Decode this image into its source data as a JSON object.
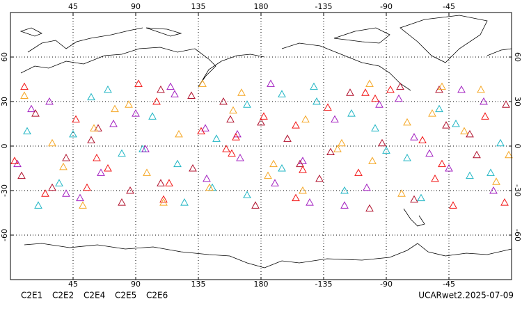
{
  "chart_data": {
    "type": "scatter",
    "xlim": [
      0,
      360
    ],
    "ylim": [
      -90,
      90
    ],
    "xticks": [
      45,
      90,
      135,
      180,
      {
        "value": 225,
        "label": "-135"
      },
      {
        "value": 270,
        "label": "-90"
      },
      {
        "value": 315,
        "label": "-45"
      }
    ],
    "yticks": [
      -60,
      -30,
      0,
      30,
      60
    ],
    "grid": true,
    "note": "UCARwet2.2025-07-09",
    "series": [
      {
        "name": "C2E1",
        "color": "#1fb5c4",
        "x": [
          12,
          35,
          58,
          80,
          102,
          125,
          148,
          170,
          195,
          218,
          240,
          262,
          285,
          308,
          330,
          352,
          20,
          70,
          120,
          170,
          220,
          270,
          320,
          45,
          145,
          245,
          345,
          95,
          195,
          295
        ],
        "y": [
          10,
          -25,
          33,
          -5,
          20,
          -38,
          5,
          28,
          -15,
          40,
          -30,
          12,
          -8,
          25,
          -20,
          2,
          -40,
          38,
          -12,
          -33,
          30,
          -3,
          15,
          8,
          -28,
          22,
          -18,
          -2,
          35,
          -35
        ]
      },
      {
        "name": "C2E2",
        "color": "#a21fc0",
        "x": [
          5,
          28,
          50,
          74,
          97,
          118,
          141,
          163,
          187,
          210,
          233,
          256,
          279,
          301,
          324,
          347,
          15,
          65,
          115,
          165,
          215,
          265,
          315,
          40,
          140,
          240,
          340,
          90,
          190,
          290
        ],
        "y": [
          -12,
          30,
          -35,
          15,
          -2,
          35,
          -22,
          8,
          42,
          -10,
          18,
          -28,
          32,
          -5,
          38,
          -30,
          25,
          -18,
          40,
          -8,
          -38,
          28,
          -15,
          -32,
          12,
          -40,
          30,
          22,
          -25,
          6
        ]
      },
      {
        "name": "C2E4",
        "color": "#b0102c",
        "x": [
          18,
          40,
          63,
          86,
          108,
          131,
          153,
          176,
          199,
          222,
          244,
          267,
          290,
          313,
          335,
          356,
          8,
          58,
          108,
          158,
          208,
          258,
          308,
          30,
          130,
          230,
          330,
          80,
          180,
          280
        ],
        "y": [
          22,
          -8,
          12,
          -30,
          38,
          -15,
          30,
          -40,
          5,
          -22,
          36,
          2,
          -36,
          14,
          -6,
          28,
          -20,
          4,
          -25,
          18,
          -12,
          -42,
          38,
          -28,
          34,
          -4,
          8,
          -38,
          16,
          40
        ]
      },
      {
        "name": "C2E5",
        "color": "#f21414",
        "x": [
          25,
          47,
          70,
          92,
          114,
          137,
          159,
          182,
          205,
          228,
          250,
          273,
          296,
          318,
          341,
          3,
          55,
          105,
          155,
          205,
          255,
          305,
          355,
          62,
          162,
          262,
          10,
          110,
          210,
          310
        ],
        "y": [
          -32,
          18,
          -15,
          42,
          -25,
          10,
          -5,
          20,
          -35,
          26,
          -18,
          38,
          4,
          -40,
          20,
          -10,
          -28,
          30,
          -2,
          14,
          36,
          -22,
          -38,
          -8,
          6,
          32,
          40,
          -36,
          -16,
          -12
        ]
      },
      {
        "name": "C2E6",
        "color": "#f5a623",
        "x": [
          30,
          52,
          75,
          98,
          121,
          143,
          166,
          189,
          212,
          235,
          258,
          281,
          303,
          326,
          349,
          10,
          60,
          110,
          160,
          210,
          260,
          310,
          358,
          85,
          185,
          285,
          38,
          138,
          238,
          338
        ],
        "y": [
          2,
          -40,
          25,
          -18,
          8,
          -28,
          36,
          -12,
          18,
          -2,
          42,
          -32,
          22,
          10,
          -24,
          34,
          12,
          -38,
          24,
          -30,
          -10,
          40,
          -6,
          28,
          -20,
          16,
          -14,
          42,
          2,
          38
        ]
      }
    ]
  }
}
